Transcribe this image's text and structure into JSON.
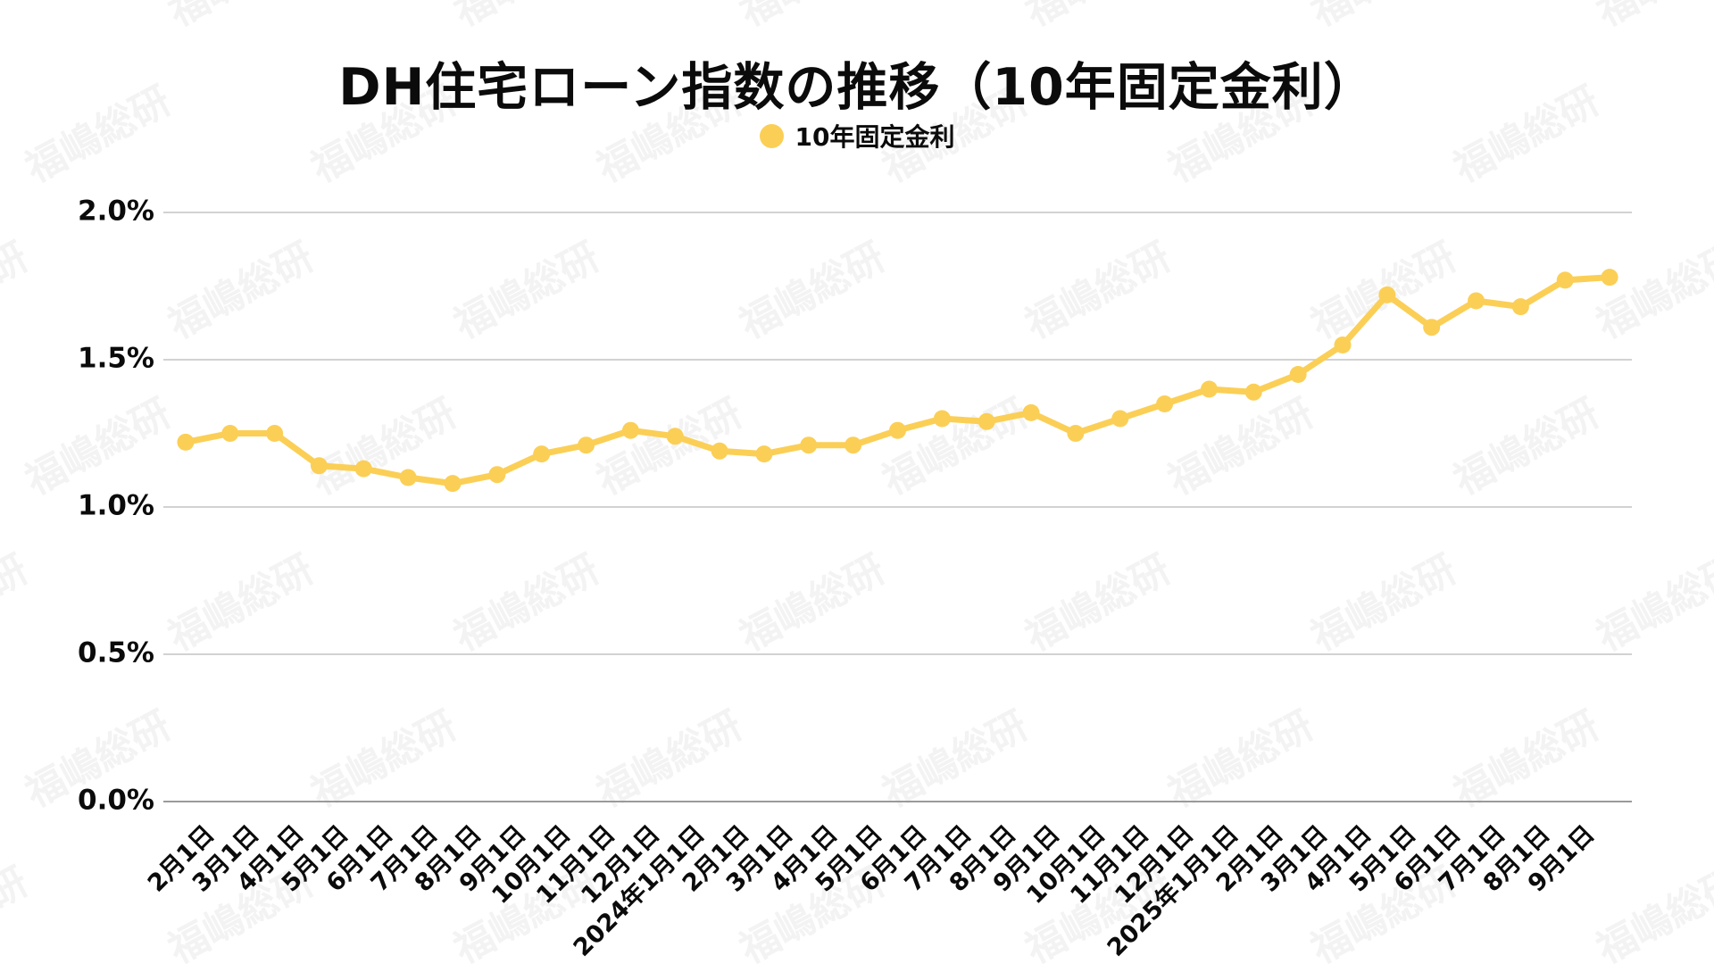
{
  "title": "DH住宅ローン指数の推移（10年固定金利）",
  "legend": {
    "label": "10年固定金利"
  },
  "watermark": {
    "text": "福嶋総研"
  },
  "colors": {
    "series": "#FBCF56",
    "grid": "#d2d2d2",
    "axis": "#9a9a9a",
    "text": "#0b0b0b",
    "background": "#ffffff"
  },
  "chart_data": {
    "type": "line",
    "title": "DH住宅ローン指数の推移（10年固定金利）",
    "legend_position": "top",
    "grid": true,
    "xlabel": "",
    "ylabel": "",
    "ylim": [
      0,
      2.0
    ],
    "ytick_labels": [
      "0.0%",
      "0.5%",
      "1.0%",
      "1.5%",
      "2.0%"
    ],
    "yticks": [
      0,
      0.5,
      1.0,
      1.5,
      2.0
    ],
    "categories": [
      "2月1日",
      "3月1日",
      "4月1日",
      "5月1日",
      "6月1日",
      "7月1日",
      "8月1日",
      "9月1日",
      "10月1日",
      "11月1日",
      "12月1日",
      "2024年1月1日",
      "2月1日",
      "3月1日",
      "4月1日",
      "5月1日",
      "6月1日",
      "7月1日",
      "8月1日",
      "9月1日",
      "10月1日",
      "11月1日",
      "12月1日",
      "2025年1月1日",
      "2月1日",
      "3月1日",
      "4月1日",
      "5月1日",
      "6月1日",
      "7月1日",
      "8月1日",
      "9月1日",
      ""
    ],
    "series": [
      {
        "name": "10年固定金利",
        "color": "#FBCF56",
        "values": [
          1.22,
          1.25,
          1.25,
          1.14,
          1.13,
          1.1,
          1.08,
          1.11,
          1.18,
          1.21,
          1.26,
          1.24,
          1.19,
          1.18,
          1.21,
          1.21,
          1.26,
          1.3,
          1.29,
          1.32,
          1.25,
          1.3,
          1.35,
          1.4,
          1.39,
          1.45,
          1.55,
          1.72,
          1.61,
          1.7,
          1.68,
          1.77,
          1.78
        ]
      }
    ]
  }
}
